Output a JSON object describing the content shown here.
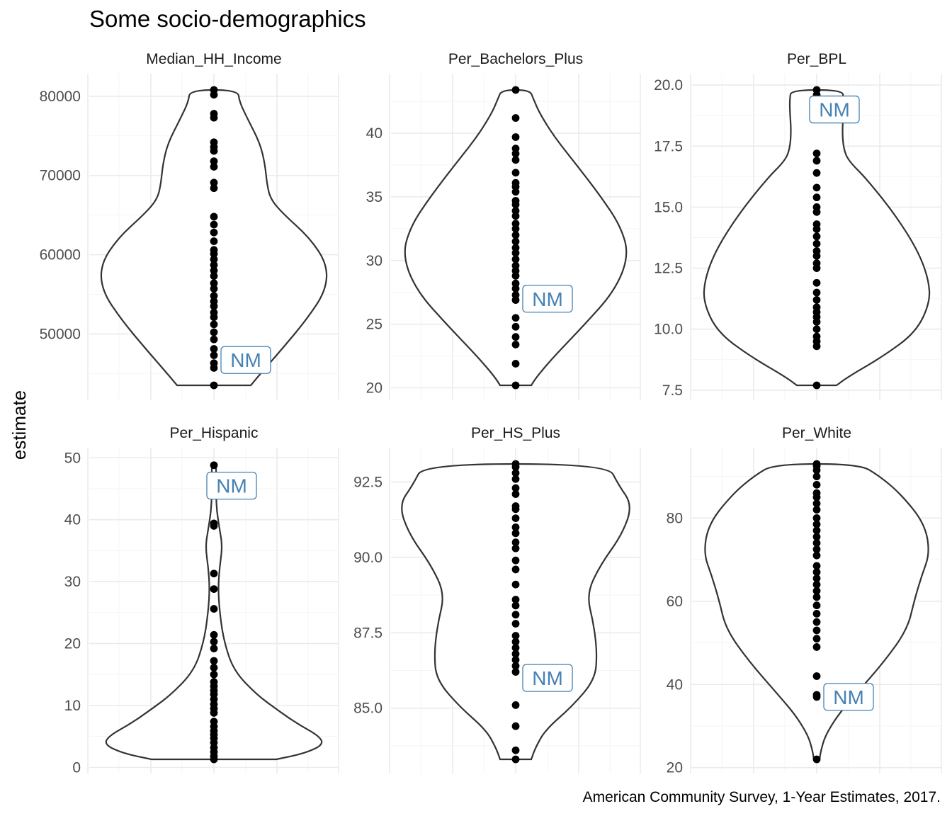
{
  "title": "Some socio-demographics",
  "caption": "American Community Survey, 1-Year Estimates, 2017.",
  "ylabel": "estimate",
  "colors": {
    "highlight": "#4682b4",
    "violin_outline": "#333333",
    "points": "#000000"
  },
  "chart_data": [
    {
      "type": "violin",
      "facet": "Median_HH_Income",
      "ylim": [
        43500,
        80800
      ],
      "yticks": [
        50000,
        60000,
        70000,
        80000
      ],
      "tick_labels": [
        "50000",
        "60000",
        "70000",
        "80000"
      ],
      "values": [
        43500,
        45700,
        46300,
        47300,
        48100,
        49300,
        50200,
        51200,
        52100,
        52700,
        53500,
        54100,
        54800,
        55700,
        56400,
        57300,
        58000,
        58700,
        59400,
        60100,
        60600,
        61700,
        62800,
        63800,
        64800,
        68400,
        69100,
        71100,
        71800,
        73100,
        73600,
        74200,
        77300,
        77800,
        80200,
        80800
      ],
      "highlight": {
        "label": "NM",
        "value": 46700
      }
    },
    {
      "type": "violin",
      "facet": "Per_Bachelors_Plus",
      "ylim": [
        20.2,
        43.4
      ],
      "yticks": [
        20,
        25,
        30,
        35,
        40
      ],
      "tick_labels": [
        "20",
        "25",
        "30",
        "35",
        "40"
      ],
      "values": [
        20.2,
        21.9,
        23.4,
        24.0,
        24.8,
        25.5,
        26.9,
        27.3,
        27.8,
        28.2,
        28.8,
        29.2,
        29.6,
        30.1,
        30.6,
        31.0,
        31.5,
        32.0,
        32.5,
        32.9,
        33.5,
        33.9,
        34.4,
        34.7,
        35.4,
        35.8,
        36.1,
        36.9,
        37.9,
        38.4,
        38.8,
        39.7,
        41.2,
        43.4
      ],
      "highlight": {
        "label": "NM",
        "value": 27.0
      }
    },
    {
      "type": "violin",
      "facet": "Per_BPL",
      "ylim": [
        7.7,
        19.8
      ],
      "yticks": [
        7.5,
        10.0,
        12.5,
        15.0,
        17.5,
        20.0
      ],
      "tick_labels": [
        "7.5",
        "10.0",
        "12.5",
        "15.0",
        "17.5",
        "20.0"
      ],
      "values": [
        7.7,
        9.3,
        9.5,
        9.7,
        10.0,
        10.3,
        10.5,
        10.7,
        10.9,
        11.2,
        11.5,
        11.9,
        12.5,
        12.7,
        13.0,
        13.2,
        13.5,
        13.8,
        14.1,
        14.3,
        14.8,
        15.0,
        15.4,
        15.8,
        16.4,
        16.9,
        17.2,
        19.6,
        19.8
      ],
      "highlight": {
        "label": "NM",
        "value": 19.0
      }
    },
    {
      "type": "violin",
      "facet": "Per_Hispanic",
      "ylim": [
        1.3,
        49.0
      ],
      "yticks": [
        0,
        10,
        20,
        30,
        40,
        50
      ],
      "tick_labels": [
        "0",
        "10",
        "20",
        "30",
        "40",
        "50"
      ],
      "values": [
        1.3,
        1.8,
        2.5,
        3.2,
        4.0,
        4.7,
        5.3,
        5.9,
        6.6,
        7.4,
        8.8,
        9.5,
        10.2,
        11.0,
        11.8,
        12.4,
        13.1,
        13.8,
        15.0,
        16.1,
        17.2,
        19.2,
        20.3,
        21.4,
        25.6,
        28.8,
        31.3,
        39.0,
        39.4,
        48.8
      ],
      "highlight": {
        "label": "NM",
        "value": 45.5
      }
    },
    {
      "type": "violin",
      "facet": "Per_HS_Plus",
      "ylim": [
        83.3,
        93.1
      ],
      "yticks": [
        85.0,
        87.5,
        90.0,
        92.5
      ],
      "tick_labels": [
        "85.0",
        "87.5",
        "90.0",
        "92.5"
      ],
      "values": [
        83.3,
        83.6,
        84.4,
        85.1,
        86.2,
        86.4,
        86.6,
        86.8,
        87.0,
        87.2,
        87.4,
        87.8,
        88.1,
        88.4,
        88.6,
        89.1,
        89.6,
        89.9,
        90.3,
        90.5,
        90.8,
        91.0,
        91.3,
        91.6,
        91.7,
        92.1,
        92.3,
        92.6,
        92.8,
        93.0,
        93.1
      ],
      "highlight": {
        "label": "NM",
        "value": 86.0
      }
    },
    {
      "type": "violin",
      "facet": "Per_White",
      "ylim": [
        22.0,
        93.0
      ],
      "yticks": [
        20,
        40,
        60,
        80
      ],
      "tick_labels": [
        "20",
        "40",
        "60",
        "80"
      ],
      "values": [
        22.0,
        37.0,
        37.5,
        42.0,
        49.0,
        51.0,
        53.0,
        55.0,
        57.0,
        59.0,
        61.0,
        62.5,
        64.0,
        65.5,
        67.0,
        68.5,
        71.0,
        72.5,
        74.0,
        75.5,
        77.0,
        78.5,
        80.0,
        82.0,
        83.5,
        85.0,
        86.0,
        88.0,
        90.0,
        91.5,
        92.5,
        93.0
      ],
      "highlight": {
        "label": "NM",
        "value": 37.0
      }
    }
  ]
}
